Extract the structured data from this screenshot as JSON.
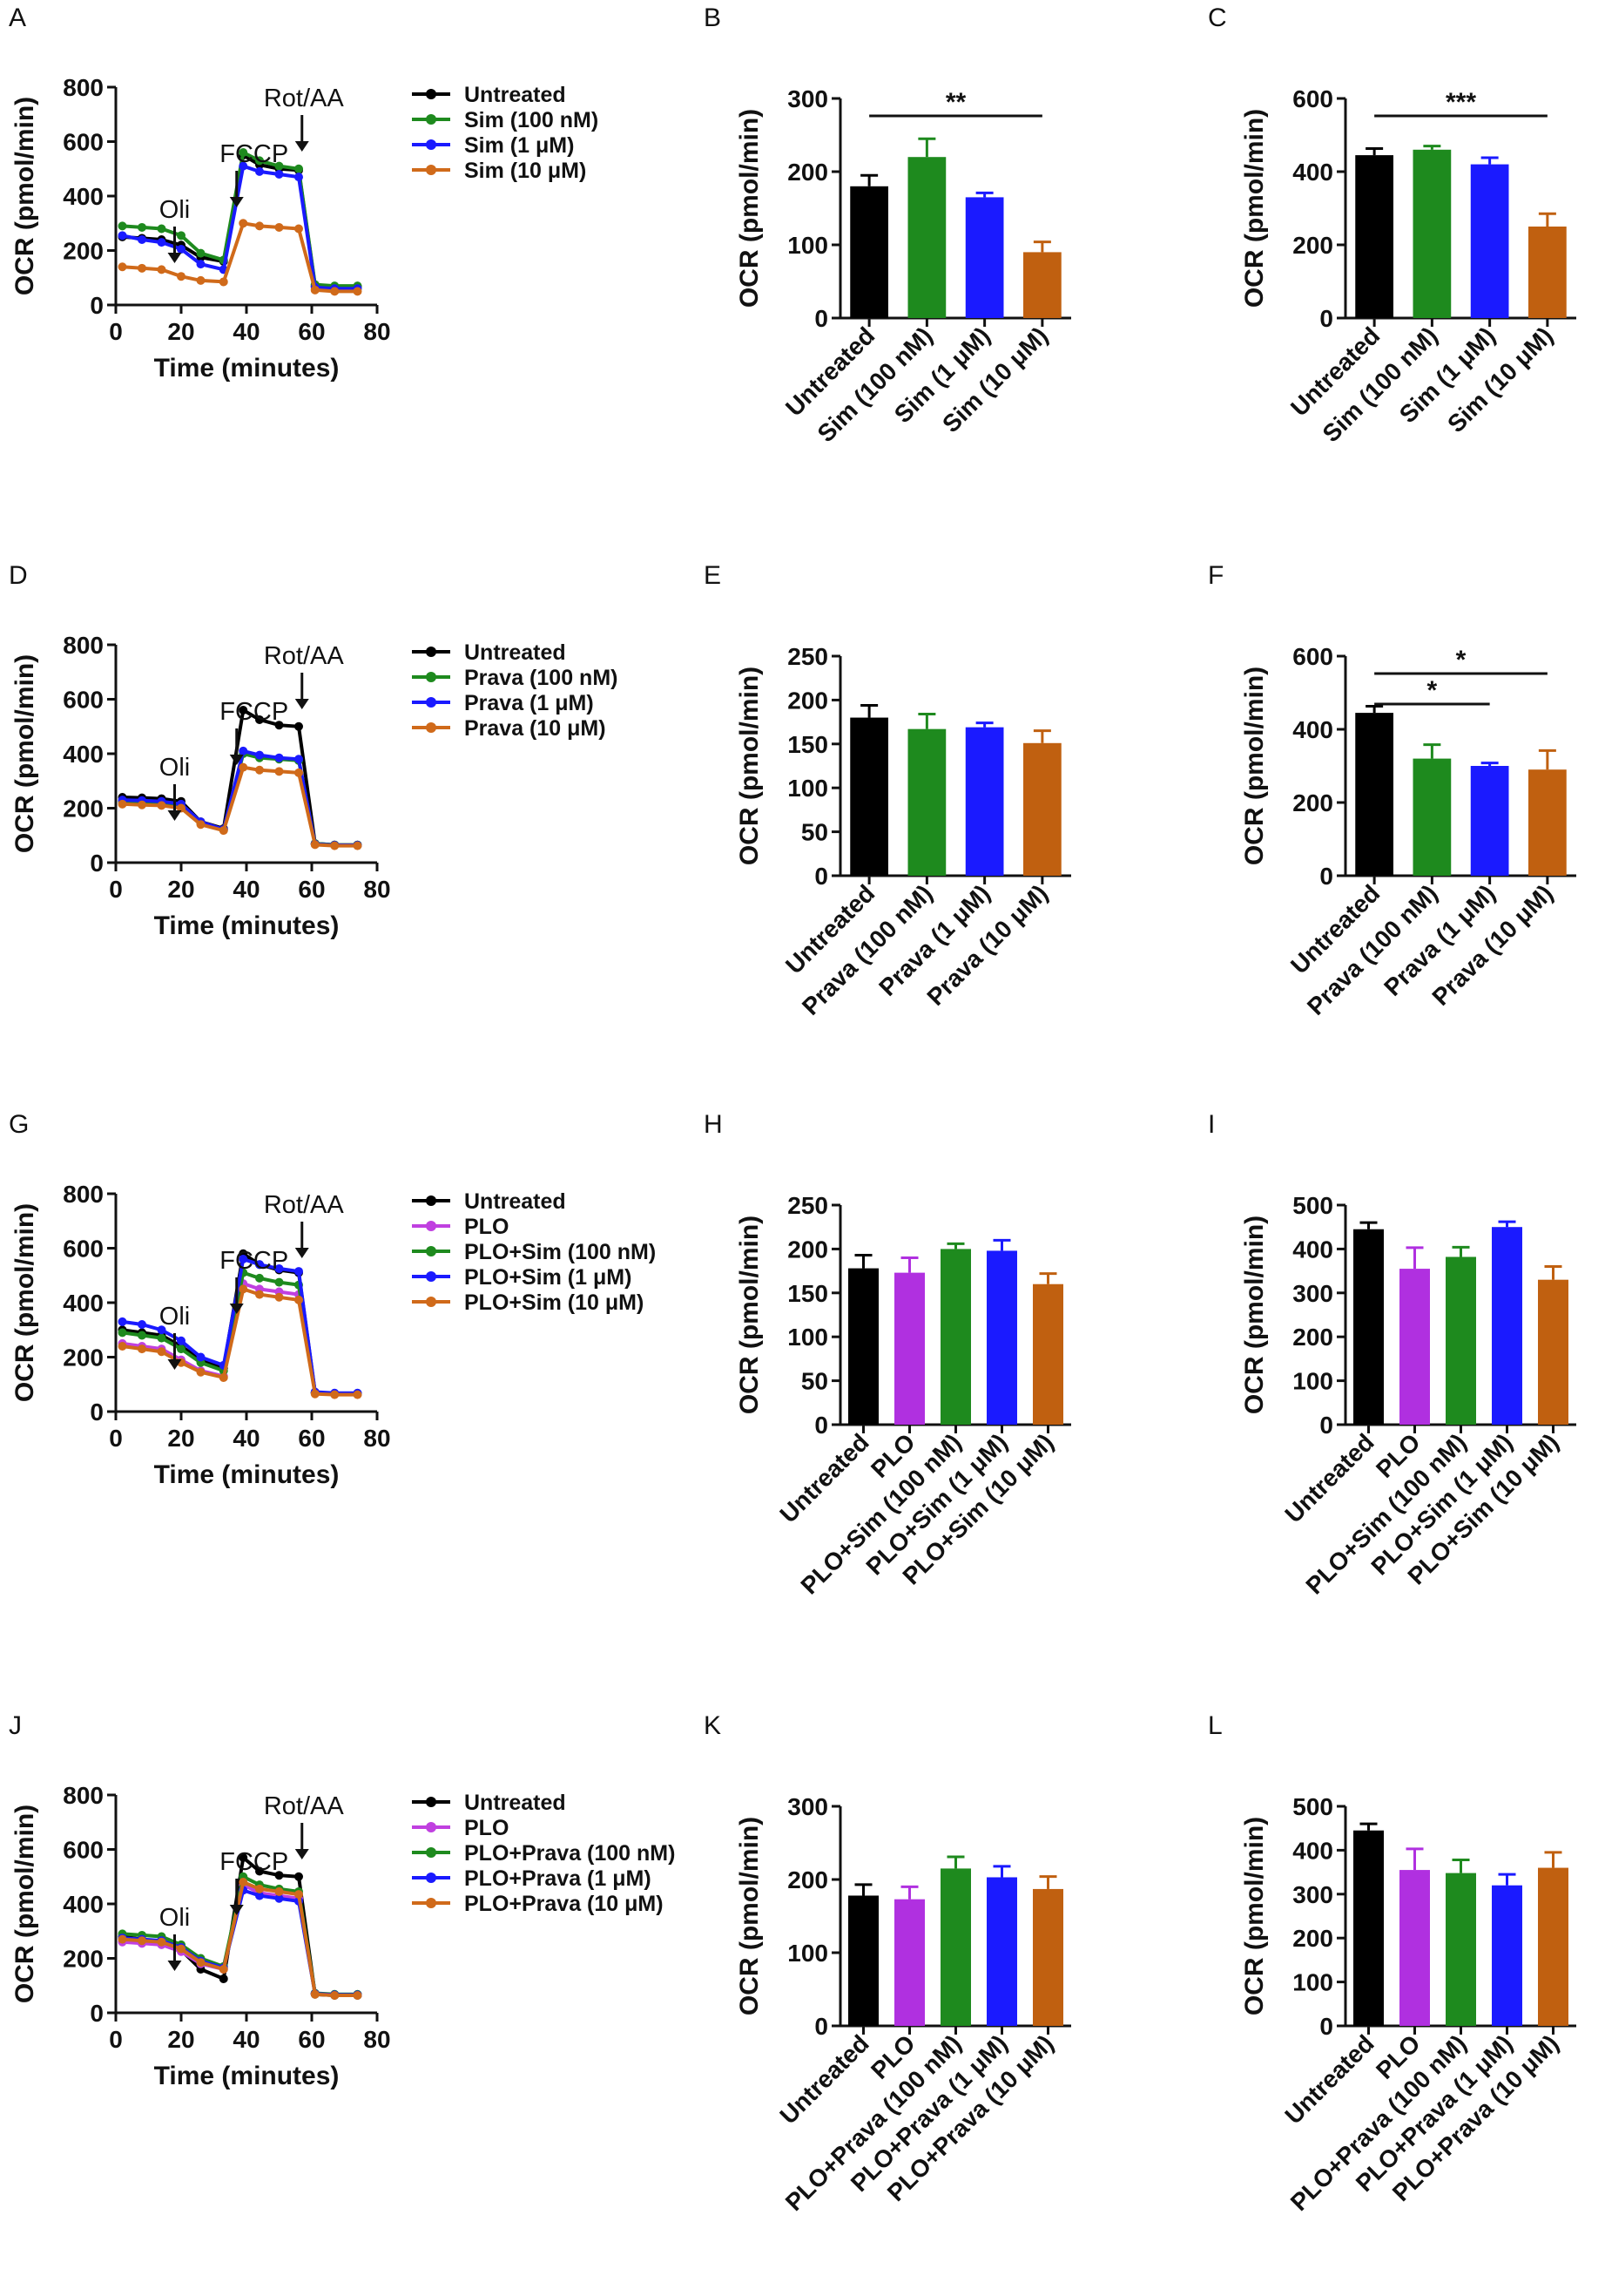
{
  "chart_data": [
    {
      "panel": "A",
      "type": "line",
      "xlabel": "Time (minutes)",
      "ylabel": "OCR (pmol/min)",
      "xlim": [
        0,
        80
      ],
      "ylim": [
        0,
        800
      ],
      "xticks": [
        0,
        20,
        40,
        60,
        80
      ],
      "yticks": [
        0,
        200,
        400,
        600,
        800
      ],
      "x": [
        2,
        8,
        14,
        20,
        26,
        33,
        39,
        44,
        50,
        56,
        61,
        67,
        74
      ],
      "annotations": [
        {
          "label": "Oli",
          "x": 18,
          "level": 1
        },
        {
          "label": "FCCP",
          "x": 37,
          "level": 2
        },
        {
          "label": "Rot/AA",
          "x": 57,
          "level": 3
        }
      ],
      "series": [
        {
          "name": "Untreated",
          "color": "#000000",
          "values": [
            250,
            245,
            240,
            220,
            175,
            160,
            550,
            515,
            500,
            495,
            70,
            68,
            68
          ]
        },
        {
          "name": "Sim (100 nM)",
          "color": "#1e8a1e",
          "values": [
            290,
            285,
            280,
            255,
            190,
            165,
            560,
            530,
            510,
            500,
            75,
            70,
            70
          ]
        },
        {
          "name": "Sim (1 μM)",
          "color": "#1a1aff",
          "values": [
            255,
            240,
            230,
            205,
            150,
            130,
            510,
            490,
            480,
            470,
            65,
            60,
            60
          ]
        },
        {
          "name": "Sim (10 μM)",
          "color": "#d06a1a",
          "values": [
            140,
            135,
            130,
            105,
            90,
            85,
            300,
            290,
            285,
            280,
            55,
            50,
            50
          ]
        }
      ]
    },
    {
      "panel": "B",
      "type": "bar",
      "ylabel": "OCR (pmol/min)",
      "ylim": [
        0,
        300
      ],
      "yticks": [
        0,
        100,
        200,
        300
      ],
      "categories": [
        "Untreated",
        "Sim (100 nM)",
        "Sim (1 μM)",
        "Sim (10 μM)"
      ],
      "values": [
        180,
        220,
        165,
        90
      ],
      "errors": [
        15,
        25,
        6,
        14
      ],
      "colors": [
        "#000000",
        "#1e8a1e",
        "#1a1aff",
        "#c06010"
      ],
      "significance": [
        {
          "from": 0,
          "to": 3,
          "label": "**"
        }
      ]
    },
    {
      "panel": "C",
      "type": "bar",
      "ylabel": "OCR (pmol/min)",
      "ylim": [
        0,
        600
      ],
      "yticks": [
        0,
        200,
        400,
        600
      ],
      "categories": [
        "Untreated",
        "Sim (100 nM)",
        "Sim (1 μM)",
        "Sim (10 μM)"
      ],
      "values": [
        445,
        460,
        420,
        250
      ],
      "errors": [
        18,
        10,
        18,
        35
      ],
      "colors": [
        "#000000",
        "#1e8a1e",
        "#1a1aff",
        "#c06010"
      ],
      "significance": [
        {
          "from": 0,
          "to": 3,
          "label": "***"
        }
      ]
    },
    {
      "panel": "D",
      "type": "line",
      "xlabel": "Time (minutes)",
      "ylabel": "OCR (pmol/min)",
      "xlim": [
        0,
        80
      ],
      "ylim": [
        0,
        800
      ],
      "xticks": [
        0,
        20,
        40,
        60,
        80
      ],
      "yticks": [
        0,
        200,
        400,
        600,
        800
      ],
      "x": [
        2,
        8,
        14,
        20,
        26,
        33,
        39,
        44,
        50,
        56,
        61,
        67,
        74
      ],
      "annotations": [
        {
          "label": "Oli",
          "x": 18,
          "level": 1
        },
        {
          "label": "FCCP",
          "x": 37,
          "level": 2
        },
        {
          "label": "Rot/AA",
          "x": 57,
          "level": 3
        }
      ],
      "series": [
        {
          "name": "Untreated",
          "color": "#000000",
          "values": [
            240,
            238,
            235,
            225,
            150,
            125,
            560,
            525,
            505,
            500,
            70,
            65,
            65
          ]
        },
        {
          "name": "Prava (100 nM)",
          "color": "#1e8a1e",
          "values": [
            225,
            222,
            220,
            210,
            145,
            120,
            400,
            385,
            380,
            375,
            70,
            65,
            65
          ]
        },
        {
          "name": "Prava (1 μM)",
          "color": "#1a1aff",
          "values": [
            230,
            228,
            225,
            215,
            150,
            122,
            410,
            395,
            385,
            380,
            68,
            64,
            64
          ]
        },
        {
          "name": "Prava (10 μM)",
          "color": "#d06a1a",
          "values": [
            215,
            212,
            210,
            200,
            140,
            118,
            350,
            340,
            335,
            330,
            66,
            62,
            62
          ]
        }
      ]
    },
    {
      "panel": "E",
      "type": "bar",
      "ylabel": "OCR (pmol/min)",
      "ylim": [
        0,
        250
      ],
      "yticks": [
        0,
        50,
        100,
        150,
        200,
        250
      ],
      "categories": [
        "Untreated",
        "Prava (100 nM)",
        "Prava (1 μM)",
        "Prava (10 μM)"
      ],
      "values": [
        180,
        167,
        169,
        151
      ],
      "errors": [
        14,
        17,
        5,
        14
      ],
      "colors": [
        "#000000",
        "#1e8a1e",
        "#1a1aff",
        "#c06010"
      ],
      "significance": []
    },
    {
      "panel": "F",
      "type": "bar",
      "ylabel": "OCR (pmol/min)",
      "ylim": [
        0,
        600
      ],
      "yticks": [
        0,
        200,
        400,
        600
      ],
      "categories": [
        "Untreated",
        "Prava (100 nM)",
        "Prava (1 μM)",
        "Prava (10 μM)"
      ],
      "values": [
        445,
        320,
        300,
        290
      ],
      "errors": [
        18,
        38,
        8,
        52
      ],
      "colors": [
        "#000000",
        "#1e8a1e",
        "#1a1aff",
        "#c06010"
      ],
      "significance": [
        {
          "from": 0,
          "to": 2,
          "label": "*"
        },
        {
          "from": 0,
          "to": 3,
          "label": "*"
        }
      ]
    },
    {
      "panel": "G",
      "type": "line",
      "xlabel": "Time (minutes)",
      "ylabel": "OCR (pmol/min)",
      "xlim": [
        0,
        80
      ],
      "ylim": [
        0,
        800
      ],
      "xticks": [
        0,
        20,
        40,
        60,
        80
      ],
      "yticks": [
        0,
        200,
        400,
        600,
        800
      ],
      "x": [
        2,
        8,
        14,
        20,
        26,
        33,
        39,
        44,
        50,
        56,
        61,
        67,
        74
      ],
      "annotations": [
        {
          "label": "Oli",
          "x": 18,
          "level": 1
        },
        {
          "label": "FCCP",
          "x": 37,
          "level": 2
        },
        {
          "label": "Rot/AA",
          "x": 57,
          "level": 3
        }
      ],
      "series": [
        {
          "name": "Untreated",
          "color": "#000000",
          "values": [
            300,
            290,
            280,
            240,
            190,
            160,
            580,
            540,
            520,
            510,
            70,
            66,
            66
          ]
        },
        {
          "name": "PLO",
          "color": "#c040e0",
          "values": [
            250,
            240,
            230,
            190,
            150,
            130,
            470,
            450,
            440,
            430,
            68,
            64,
            64
          ]
        },
        {
          "name": "PLO+Sim (100 nM)",
          "color": "#1e8a1e",
          "values": [
            290,
            280,
            270,
            230,
            180,
            150,
            510,
            490,
            475,
            465,
            70,
            66,
            66
          ]
        },
        {
          "name": "PLO+Sim (1 μM)",
          "color": "#1a1aff",
          "values": [
            330,
            320,
            300,
            260,
            200,
            170,
            560,
            540,
            525,
            515,
            72,
            68,
            68
          ]
        },
        {
          "name": "PLO+Sim (10 μM)",
          "color": "#d06a1a",
          "values": [
            240,
            230,
            220,
            180,
            145,
            125,
            450,
            430,
            420,
            410,
            65,
            62,
            62
          ]
        }
      ]
    },
    {
      "panel": "H",
      "type": "bar",
      "ylabel": "OCR (pmol/min)",
      "ylim": [
        0,
        250
      ],
      "yticks": [
        0,
        50,
        100,
        150,
        200,
        250
      ],
      "categories": [
        "Untreated",
        "PLO",
        "PLO+Sim (100 nM)",
        "PLO+Sim (1 μM)",
        "PLO+Sim (10 μM)"
      ],
      "values": [
        178,
        173,
        200,
        198,
        160
      ],
      "errors": [
        15,
        17,
        6,
        12,
        12
      ],
      "colors": [
        "#000000",
        "#b030e0",
        "#1e8a1e",
        "#1a1aff",
        "#c06010"
      ],
      "significance": []
    },
    {
      "panel": "I",
      "type": "bar",
      "ylabel": "OCR (pmol/min)",
      "ylim": [
        0,
        500
      ],
      "yticks": [
        0,
        100,
        200,
        300,
        400,
        500
      ],
      "categories": [
        "Untreated",
        "PLO",
        "PLO+Sim (100 nM)",
        "PLO+Sim (1 μM)",
        "PLO+Sim (10 μM)"
      ],
      "values": [
        445,
        355,
        382,
        450,
        330
      ],
      "errors": [
        15,
        48,
        22,
        12,
        30
      ],
      "colors": [
        "#000000",
        "#b030e0",
        "#1e8a1e",
        "#1a1aff",
        "#c06010"
      ],
      "significance": []
    },
    {
      "panel": "J",
      "type": "line",
      "xlabel": "Time (minutes)",
      "ylabel": "OCR (pmol/min)",
      "xlim": [
        0,
        80
      ],
      "ylim": [
        0,
        800
      ],
      "xticks": [
        0,
        20,
        40,
        60,
        80
      ],
      "yticks": [
        0,
        200,
        400,
        600,
        800
      ],
      "x": [
        2,
        8,
        14,
        20,
        26,
        33,
        39,
        44,
        50,
        56,
        61,
        67,
        74
      ],
      "annotations": [
        {
          "label": "Oli",
          "x": 18,
          "level": 1
        },
        {
          "label": "FCCP",
          "x": 37,
          "level": 2
        },
        {
          "label": "Rot/AA",
          "x": 57,
          "level": 3
        }
      ],
      "series": [
        {
          "name": "Untreated",
          "color": "#000000",
          "values": [
            280,
            270,
            260,
            230,
            160,
            125,
            570,
            520,
            505,
            500,
            68,
            64,
            64
          ]
        },
        {
          "name": "PLO",
          "color": "#c040e0",
          "values": [
            260,
            255,
            250,
            225,
            180,
            160,
            470,
            440,
            430,
            420,
            70,
            66,
            66
          ]
        },
        {
          "name": "PLO+Prava (100 nM)",
          "color": "#1e8a1e",
          "values": [
            290,
            285,
            280,
            250,
            200,
            170,
            500,
            470,
            455,
            445,
            72,
            68,
            68
          ]
        },
        {
          "name": "PLO+Prava (1 μM)",
          "color": "#1a1aff",
          "values": [
            275,
            270,
            265,
            240,
            190,
            165,
            450,
            430,
            420,
            410,
            70,
            66,
            66
          ]
        },
        {
          "name": "PLO+Prava (10 μM)",
          "color": "#d06a1a",
          "values": [
            270,
            265,
            260,
            235,
            185,
            160,
            480,
            455,
            445,
            435,
            68,
            64,
            64
          ]
        }
      ]
    },
    {
      "panel": "K",
      "type": "bar",
      "ylabel": "OCR (pmol/min)",
      "ylim": [
        0,
        300
      ],
      "yticks": [
        0,
        100,
        200,
        300
      ],
      "categories": [
        "Untreated",
        "PLO",
        "PLO+Prava (100 nM)",
        "PLO+Prava (1 μM)",
        "PLO+Prava (10 μM)"
      ],
      "values": [
        178,
        173,
        215,
        203,
        187
      ],
      "errors": [
        15,
        17,
        16,
        15,
        17
      ],
      "colors": [
        "#000000",
        "#b030e0",
        "#1e8a1e",
        "#1a1aff",
        "#c06010"
      ],
      "significance": []
    },
    {
      "panel": "L",
      "type": "bar",
      "ylabel": "OCR (pmol/min)",
      "ylim": [
        0,
        500
      ],
      "yticks": [
        0,
        100,
        200,
        300,
        400,
        500
      ],
      "categories": [
        "Untreated",
        "PLO",
        "PLO+Prava (100 nM)",
        "PLO+Prava (1 μM)",
        "PLO+Prava (10 μM)"
      ],
      "values": [
        445,
        355,
        348,
        320,
        360
      ],
      "errors": [
        15,
        48,
        30,
        25,
        35
      ],
      "colors": [
        "#000000",
        "#b030e0",
        "#1e8a1e",
        "#1a1aff",
        "#c06010"
      ],
      "significance": []
    }
  ]
}
